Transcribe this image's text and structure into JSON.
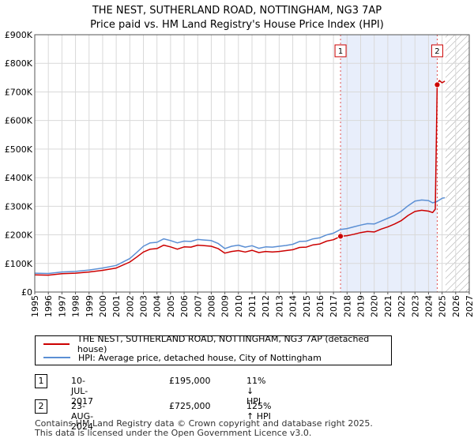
{
  "chart_data": {
    "type": "line",
    "title": "THE NEST, SUTHERLAND ROAD, NOTTINGHAM, NG3 7AP",
    "subtitle": "Price paid vs. HM Land Registry's House Price Index (HPI)",
    "xlim": [
      1995,
      2027
    ],
    "ylim": [
      0,
      900000
    ],
    "x_ticks": [
      1995,
      1996,
      1997,
      1998,
      1999,
      2000,
      2001,
      2002,
      2003,
      2004,
      2005,
      2006,
      2007,
      2008,
      2009,
      2010,
      2011,
      2012,
      2013,
      2014,
      2015,
      2016,
      2017,
      2018,
      2019,
      2020,
      2021,
      2022,
      2023,
      2024,
      2025,
      2026,
      2027
    ],
    "y_ticks": [
      0,
      100000,
      200000,
      300000,
      400000,
      500000,
      600000,
      700000,
      800000,
      900000
    ],
    "y_tick_labels": [
      "£0",
      "£100K",
      "£200K",
      "£300K",
      "£400K",
      "£500K",
      "£600K",
      "£700K",
      "£800K",
      "£900K"
    ],
    "grid": true,
    "shaded_period": [
      2017.52,
      2024.64
    ],
    "future_hatch_from": 2025.25,
    "series": [
      {
        "name": "THE NEST, SUTHERLAND ROAD, NOTTINGHAM, NG3 7AP (detached house)",
        "color": "#cc0000",
        "points": [
          [
            1995.0,
            60000
          ],
          [
            1996.0,
            59000
          ],
          [
            1997.0,
            64000
          ],
          [
            1998.0,
            66000
          ],
          [
            1999.0,
            70000
          ],
          [
            2000.0,
            76000
          ],
          [
            2001.0,
            84000
          ],
          [
            2002.0,
            105000
          ],
          [
            2002.5,
            122000
          ],
          [
            2003.0,
            140000
          ],
          [
            2003.5,
            150000
          ],
          [
            2004.0,
            152000
          ],
          [
            2004.5,
            164000
          ],
          [
            2005.0,
            158000
          ],
          [
            2005.5,
            150000
          ],
          [
            2006.0,
            158000
          ],
          [
            2006.5,
            157000
          ],
          [
            2007.0,
            164000
          ],
          [
            2007.5,
            162000
          ],
          [
            2008.0,
            160000
          ],
          [
            2008.5,
            152000
          ],
          [
            2009.0,
            136000
          ],
          [
            2009.5,
            142000
          ],
          [
            2010.0,
            145000
          ],
          [
            2010.5,
            140000
          ],
          [
            2011.0,
            146000
          ],
          [
            2011.5,
            138000
          ],
          [
            2012.0,
            142000
          ],
          [
            2012.5,
            140000
          ],
          [
            2013.0,
            142000
          ],
          [
            2013.5,
            145000
          ],
          [
            2014.0,
            148000
          ],
          [
            2014.5,
            156000
          ],
          [
            2015.0,
            157000
          ],
          [
            2015.5,
            165000
          ],
          [
            2016.0,
            168000
          ],
          [
            2016.5,
            178000
          ],
          [
            2017.0,
            183000
          ],
          [
            2017.52,
            195000
          ],
          [
            2018.0,
            197000
          ],
          [
            2018.5,
            202000
          ],
          [
            2019.0,
            208000
          ],
          [
            2019.5,
            212000
          ],
          [
            2020.0,
            210000
          ],
          [
            2020.5,
            220000
          ],
          [
            2021.0,
            228000
          ],
          [
            2021.5,
            238000
          ],
          [
            2022.0,
            250000
          ],
          [
            2022.5,
            268000
          ],
          [
            2023.0,
            282000
          ],
          [
            2023.5,
            286000
          ],
          [
            2024.0,
            283000
          ],
          [
            2024.3,
            278000
          ],
          [
            2024.5,
            290000
          ],
          [
            2024.64,
            725000
          ],
          [
            2024.8,
            740000
          ],
          [
            2025.0,
            732000
          ],
          [
            2025.2,
            738000
          ]
        ]
      },
      {
        "name": "HPI: Average price, detached house, City of Nottingham",
        "color": "#5b8fd4",
        "points": [
          [
            1995.0,
            66000
          ],
          [
            1996.0,
            65000
          ],
          [
            1997.0,
            70000
          ],
          [
            1998.0,
            72000
          ],
          [
            1999.0,
            77000
          ],
          [
            2000.0,
            84000
          ],
          [
            2001.0,
            93000
          ],
          [
            2002.0,
            117000
          ],
          [
            2002.5,
            138000
          ],
          [
            2003.0,
            160000
          ],
          [
            2003.5,
            172000
          ],
          [
            2004.0,
            174000
          ],
          [
            2004.5,
            186000
          ],
          [
            2005.0,
            180000
          ],
          [
            2005.5,
            172000
          ],
          [
            2006.0,
            178000
          ],
          [
            2006.5,
            177000
          ],
          [
            2007.0,
            184000
          ],
          [
            2007.5,
            182000
          ],
          [
            2008.0,
            180000
          ],
          [
            2008.5,
            170000
          ],
          [
            2009.0,
            152000
          ],
          [
            2009.5,
            160000
          ],
          [
            2010.0,
            164000
          ],
          [
            2010.5,
            157000
          ],
          [
            2011.0,
            162000
          ],
          [
            2011.5,
            153000
          ],
          [
            2012.0,
            158000
          ],
          [
            2012.5,
            157000
          ],
          [
            2013.0,
            160000
          ],
          [
            2013.5,
            163000
          ],
          [
            2014.0,
            167000
          ],
          [
            2014.5,
            177000
          ],
          [
            2015.0,
            178000
          ],
          [
            2015.5,
            186000
          ],
          [
            2016.0,
            190000
          ],
          [
            2016.5,
            200000
          ],
          [
            2017.0,
            206000
          ],
          [
            2017.52,
            219000
          ],
          [
            2018.0,
            222000
          ],
          [
            2018.5,
            228000
          ],
          [
            2019.0,
            234000
          ],
          [
            2019.5,
            239000
          ],
          [
            2020.0,
            238000
          ],
          [
            2020.5,
            248000
          ],
          [
            2021.0,
            258000
          ],
          [
            2021.5,
            268000
          ],
          [
            2022.0,
            283000
          ],
          [
            2022.5,
            302000
          ],
          [
            2023.0,
            318000
          ],
          [
            2023.5,
            322000
          ],
          [
            2024.0,
            320000
          ],
          [
            2024.3,
            312000
          ],
          [
            2024.6,
            316000
          ],
          [
            2024.8,
            322000
          ],
          [
            2025.0,
            328000
          ],
          [
            2025.2,
            330000
          ]
        ]
      }
    ],
    "sales": [
      {
        "label": "1",
        "x": 2017.52,
        "price": 195000,
        "box_value": 845000
      },
      {
        "label": "2",
        "x": 2024.64,
        "price": 725000,
        "box_value": 845000
      }
    ]
  },
  "legend": {
    "property_label": "THE NEST, SUTHERLAND ROAD, NOTTINGHAM, NG3 7AP (detached house)",
    "hpi_label": "HPI: Average price, detached house, City of Nottingham"
  },
  "sales_table": [
    {
      "num": "1",
      "date": "10-JUL-2017",
      "price": "£195,000",
      "hpi": "11% ↓ HPI"
    },
    {
      "num": "2",
      "date": "23-AUG-2024",
      "price": "£725,000",
      "hpi": "125% ↑ HPI"
    }
  ],
  "footer": {
    "line1": "Contains HM Land Registry data © Crown copyright and database right 2025.",
    "line2": "This data is licensed under the Open Government Licence v3.0."
  },
  "colors": {
    "property": "#cc0000",
    "hpi": "#5b8fd4",
    "shade": "#e8eefb",
    "grid": "#d9d9d9"
  }
}
